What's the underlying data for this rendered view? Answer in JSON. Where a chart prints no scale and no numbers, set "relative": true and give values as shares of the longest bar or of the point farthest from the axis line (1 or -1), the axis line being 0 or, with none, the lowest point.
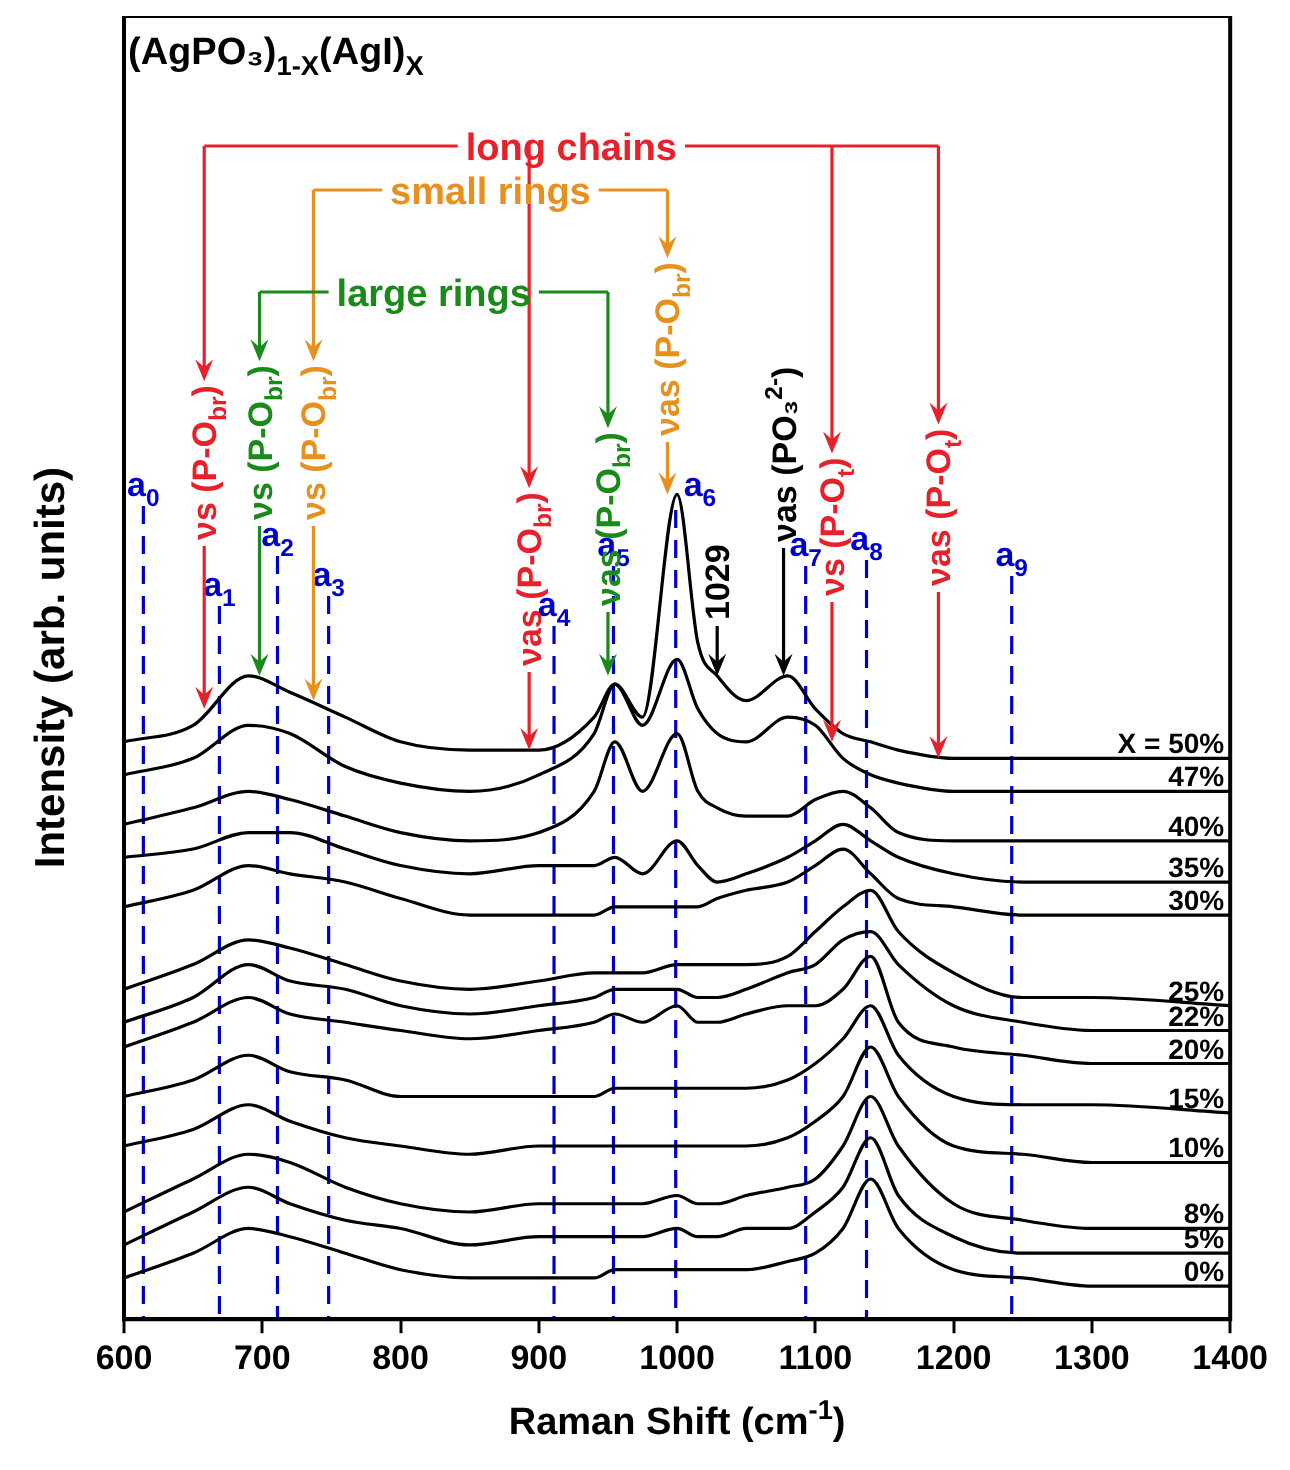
{
  "chart_data": {
    "type": "line",
    "title": "(AgPO₃)$_{1-X}$(AgI)$_{X}$",
    "xlabel": "Raman Shift (cm$^{-1}$)",
    "ylabel": "Intensity (arb. units)",
    "relative": true,
    "xlim": [
      600,
      1400
    ],
    "xticks": [
      600,
      700,
      800,
      900,
      1000,
      1100,
      1200,
      1300,
      1400
    ],
    "grid": false,
    "legend": false,
    "marker": "none",
    "line_style": "solid",
    "x": [
      600,
      650,
      690,
      720,
      760,
      800,
      850,
      900,
      940,
      955,
      975,
      1000,
      1015,
      1029,
      1050,
      1080,
      1100,
      1120,
      1140,
      1160,
      1200,
      1250,
      1300,
      1400
    ],
    "series": [
      {
        "name": "X = 50%",
        "color": "#000000",
        "values": [
          0.7,
          0.72,
          0.78,
          0.76,
          0.73,
          0.7,
          0.69,
          0.69,
          0.73,
          0.77,
          0.73,
          1.0,
          0.82,
          0.78,
          0.75,
          0.78,
          0.74,
          0.71,
          0.7,
          0.69,
          0.68,
          0.68,
          0.68,
          0.68
        ]
      },
      {
        "name": "47%",
        "color": "#000000",
        "values": [
          0.66,
          0.68,
          0.72,
          0.71,
          0.67,
          0.65,
          0.64,
          0.66,
          0.71,
          0.77,
          0.72,
          0.8,
          0.74,
          0.71,
          0.7,
          0.73,
          0.72,
          0.68,
          0.66,
          0.65,
          0.64,
          0.64,
          0.64,
          0.64
        ]
      },
      {
        "name": "40%",
        "color": "#000000",
        "values": [
          0.6,
          0.62,
          0.64,
          0.63,
          0.61,
          0.59,
          0.58,
          0.59,
          0.64,
          0.7,
          0.64,
          0.71,
          0.64,
          0.62,
          0.61,
          0.61,
          0.63,
          0.64,
          0.62,
          0.59,
          0.58,
          0.58,
          0.58,
          0.58
        ]
      },
      {
        "name": "35%",
        "color": "#000000",
        "values": [
          0.56,
          0.57,
          0.59,
          0.59,
          0.57,
          0.55,
          0.54,
          0.55,
          0.55,
          0.56,
          0.54,
          0.58,
          0.55,
          0.53,
          0.54,
          0.56,
          0.58,
          0.6,
          0.58,
          0.56,
          0.54,
          0.53,
          0.53,
          0.53
        ]
      },
      {
        "name": "30%",
        "color": "#000000",
        "values": [
          0.5,
          0.52,
          0.55,
          0.54,
          0.53,
          0.51,
          0.49,
          0.49,
          0.49,
          0.5,
          0.5,
          0.5,
          0.5,
          0.51,
          0.52,
          0.53,
          0.55,
          0.57,
          0.54,
          0.51,
          0.5,
          0.49,
          0.49,
          0.49
        ]
      },
      {
        "name": "25%",
        "color": "#000000",
        "values": [
          0.4,
          0.43,
          0.46,
          0.45,
          0.43,
          0.41,
          0.4,
          0.41,
          0.42,
          0.42,
          0.42,
          0.43,
          0.43,
          0.43,
          0.43,
          0.44,
          0.47,
          0.5,
          0.52,
          0.47,
          0.42,
          0.39,
          0.39,
          0.38
        ]
      },
      {
        "name": "22%",
        "color": "#000000",
        "values": [
          0.36,
          0.39,
          0.43,
          0.41,
          0.4,
          0.38,
          0.37,
          0.38,
          0.39,
          0.4,
          0.4,
          0.4,
          0.39,
          0.39,
          0.4,
          0.42,
          0.43,
          0.46,
          0.47,
          0.43,
          0.38,
          0.36,
          0.35,
          0.35
        ]
      },
      {
        "name": "20%",
        "color": "#000000",
        "values": [
          0.33,
          0.36,
          0.39,
          0.37,
          0.36,
          0.35,
          0.34,
          0.35,
          0.36,
          0.37,
          0.36,
          0.38,
          0.36,
          0.36,
          0.37,
          0.38,
          0.38,
          0.4,
          0.44,
          0.36,
          0.33,
          0.32,
          0.31,
          0.31
        ]
      },
      {
        "name": "15%",
        "color": "#000000",
        "values": [
          0.27,
          0.29,
          0.32,
          0.3,
          0.29,
          0.27,
          0.27,
          0.27,
          0.27,
          0.28,
          0.28,
          0.28,
          0.28,
          0.28,
          0.28,
          0.29,
          0.31,
          0.34,
          0.38,
          0.32,
          0.27,
          0.26,
          0.26,
          0.25
        ]
      },
      {
        "name": "10%",
        "color": "#000000",
        "values": [
          0.21,
          0.23,
          0.26,
          0.24,
          0.22,
          0.21,
          0.2,
          0.21,
          0.21,
          0.21,
          0.21,
          0.21,
          0.21,
          0.21,
          0.21,
          0.22,
          0.24,
          0.27,
          0.33,
          0.27,
          0.21,
          0.2,
          0.19,
          0.19
        ]
      },
      {
        "name": "8%",
        "color": "#000000",
        "values": [
          0.13,
          0.17,
          0.2,
          0.19,
          0.16,
          0.14,
          0.13,
          0.14,
          0.14,
          0.14,
          0.14,
          0.15,
          0.14,
          0.14,
          0.15,
          0.16,
          0.17,
          0.21,
          0.27,
          0.21,
          0.14,
          0.12,
          0.11,
          0.11
        ]
      },
      {
        "name": "5%",
        "color": "#000000",
        "values": [
          0.09,
          0.13,
          0.16,
          0.14,
          0.12,
          0.11,
          0.09,
          0.1,
          0.1,
          0.1,
          0.1,
          0.11,
          0.1,
          0.1,
          0.11,
          0.11,
          0.13,
          0.16,
          0.22,
          0.15,
          0.1,
          0.08,
          0.08,
          0.08
        ]
      },
      {
        "name": "0%",
        "color": "#000000",
        "values": [
          0.05,
          0.08,
          0.11,
          0.1,
          0.08,
          0.06,
          0.05,
          0.05,
          0.05,
          0.06,
          0.06,
          0.06,
          0.06,
          0.06,
          0.06,
          0.07,
          0.08,
          0.11,
          0.17,
          0.11,
          0.06,
          0.05,
          0.04,
          0.04
        ]
      }
    ],
    "ref_lines": [
      {
        "axis": "x",
        "value": 614,
        "label": "a$_{0}$",
        "color": "#0000cc",
        "line_style": "dashed"
      },
      {
        "axis": "x",
        "value": 669,
        "label": "a$_{1}$",
        "color": "#0000cc",
        "line_style": "dashed"
      },
      {
        "axis": "x",
        "value": 711,
        "label": "a$_{2}$",
        "color": "#0000cc",
        "line_style": "dashed"
      },
      {
        "axis": "x",
        "value": 748,
        "label": "a$_{3}$",
        "color": "#0000cc",
        "line_style": "dashed"
      },
      {
        "axis": "x",
        "value": 911,
        "label": "a$_{4}$",
        "color": "#0000cc",
        "line_style": "dashed"
      },
      {
        "axis": "x",
        "value": 954,
        "label": "a$_{5}$",
        "color": "#0000cc",
        "line_style": "dashed"
      },
      {
        "axis": "x",
        "value": 999,
        "label": "a$_{6}$",
        "color": "#0000cc",
        "line_style": "dashed"
      },
      {
        "axis": "x",
        "value": 1093,
        "label": "a$_{7}$",
        "color": "#0000cc",
        "line_style": "dashed"
      },
      {
        "axis": "x",
        "value": 1137,
        "label": "a$_{8}$",
        "color": "#0000cc",
        "line_style": "dashed"
      },
      {
        "axis": "x",
        "value": 1242,
        "label": "a$_{9}$",
        "color": "#0000cc",
        "line_style": "dashed"
      }
    ],
    "annotations": [
      {
        "text": "νs (P-O$_{br}$)",
        "x": 658,
        "y": 0.74
      },
      {
        "text": "νs (P-O$_{br}$)",
        "x": 698,
        "y": 0.78
      },
      {
        "text": "νs (P-O$_{br}$)",
        "x": 737,
        "y": 0.75
      },
      {
        "text": "νas (P-O$_{br}$)",
        "x": 893,
        "y": 0.69
      },
      {
        "text": "νas (P-O$_{br}$)",
        "x": 950,
        "y": 0.78
      },
      {
        "text": "νas (P-O$_{br}$)",
        "x": 993,
        "y": 1.0
      },
      {
        "text": "1029",
        "x": 1029,
        "y": 0.78
      },
      {
        "text": "νas (PO₃$^{2-}$)",
        "x": 1077,
        "y": 0.78
      },
      {
        "text": "νs (P-O$_{t}$)",
        "x": 1112,
        "y": 0.7
      },
      {
        "text": "νas (P-O$_{t}$)",
        "x": 1189,
        "y": 0.68
      },
      "long chains",
      "small rings",
      "large rings"
    ]
  }
}
